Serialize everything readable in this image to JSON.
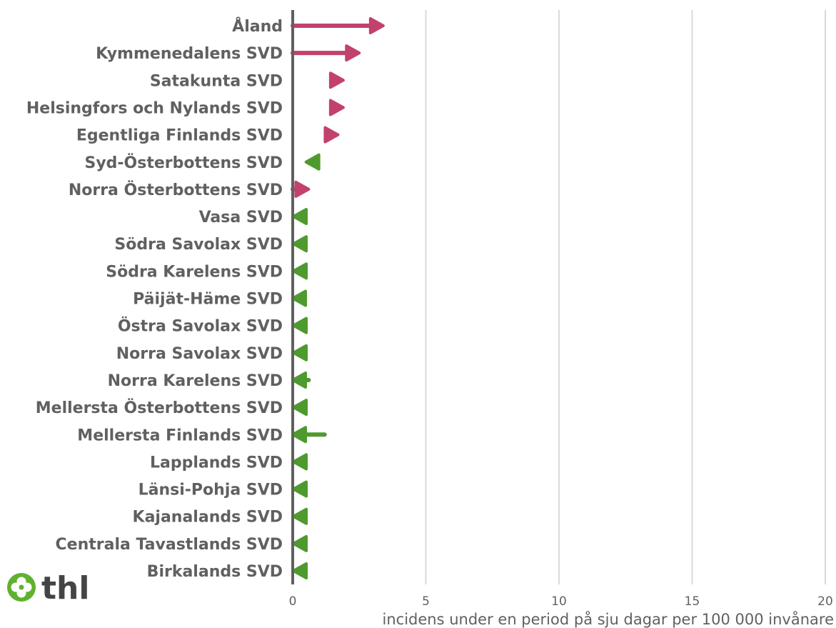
{
  "chart_data": {
    "type": "arrow",
    "orientation": "horizontal",
    "title": "",
    "xlabel": "incidens under en period på sju dagar per 100 000 invånare",
    "ylabel": "",
    "xlim": [
      0,
      20
    ],
    "xticks": [
      0,
      5,
      10,
      15,
      20
    ],
    "grid": true,
    "legend": "none",
    "colors": {
      "increase": "#c2416e",
      "decrease": "#4e9a2e",
      "axis": "#606060",
      "grid": "#d9d9d9",
      "text": "#606060"
    },
    "categories": [
      "Åland",
      "Kymmenedalens SVD",
      "Satakunta SVD",
      "Helsingfors och Nylands SVD",
      "Egentliga Finlands SVD",
      "Syd-Österbottens SVD",
      "Norra Österbottens SVD",
      "Vasa SVD",
      "Södra Savolax SVD",
      "Södra Karelens SVD",
      "Päijät-Häme SVD",
      "Östra Savolax SVD",
      "Norra Savolax SVD",
      "Norra Karelens SVD",
      "Mellersta Österbottens SVD",
      "Mellersta Finlands SVD",
      "Lapplands SVD",
      "Länsi-Pohja SVD",
      "Kajanalands SVD",
      "Centrala Tavastlands SVD",
      "Birkalands SVD"
    ],
    "series": [
      {
        "start": [
          0.0,
          0.0,
          1.5,
          1.5,
          1.3,
          0.9,
          0.0,
          0.0,
          0.0,
          0.0,
          0.5,
          0.0,
          0.0,
          0.6,
          0.0,
          1.2,
          0.0,
          0.0,
          0.0,
          0.0,
          0.0
        ],
        "end": [
          3.4,
          2.5,
          1.9,
          1.9,
          1.7,
          0.5,
          0.6,
          0.0,
          0.0,
          0.0,
          0.0,
          0.0,
          0.0,
          0.0,
          0.0,
          0.0,
          0.0,
          0.0,
          0.0,
          0.0,
          0.0
        ]
      }
    ]
  },
  "logo": {
    "text": "thl",
    "icon": "clover-flower-icon",
    "color": "#5fb130"
  }
}
